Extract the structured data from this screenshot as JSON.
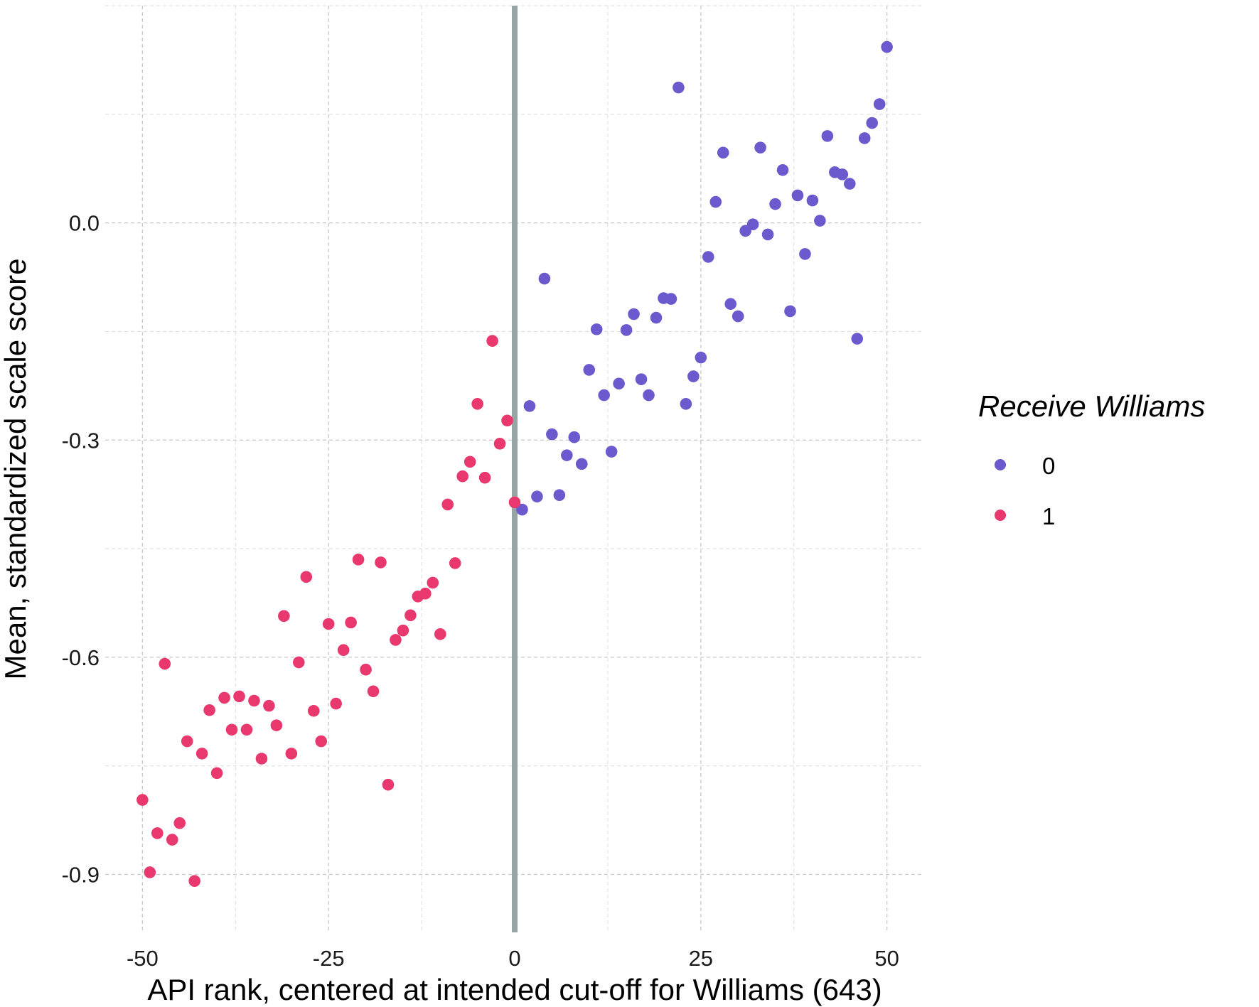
{
  "chart_data": {
    "type": "scatter",
    "title": "",
    "xlabel": "API rank, centered at intended cut-off for Williams (643)",
    "ylabel": "Mean, standardized scale score",
    "xlim": [
      -55,
      55
    ],
    "ylim": [
      -0.98,
      0.3
    ],
    "x_ticks": [
      -50,
      -25,
      0,
      25,
      50
    ],
    "x_tick_labels": [
      "-50",
      "-25",
      "0",
      "25",
      "50"
    ],
    "y_ticks": [
      -0.9,
      -0.6,
      -0.3,
      0.0
    ],
    "y_tick_labels": [
      "-0.9",
      "-0.6",
      "-0.3",
      "0.0"
    ],
    "grid": true,
    "cutoff_line_x": 0,
    "legend": {
      "title": "Receive Williams",
      "position": "right",
      "entries": [
        {
          "label": "0",
          "color": "#6a5acd"
        },
        {
          "label": "1",
          "color": "#e8386d"
        }
      ]
    },
    "series": [
      {
        "name": "0",
        "color": "#6a5acd",
        "points": [
          [
            1,
            -0.396
          ],
          [
            2,
            -0.253
          ],
          [
            3,
            -0.378
          ],
          [
            4,
            -0.077
          ],
          [
            5,
            -0.292
          ],
          [
            6,
            -0.376
          ],
          [
            7,
            -0.321
          ],
          [
            8,
            -0.296
          ],
          [
            9,
            -0.333
          ],
          [
            10,
            -0.203
          ],
          [
            11,
            -0.147
          ],
          [
            12,
            -0.238
          ],
          [
            13,
            -0.316
          ],
          [
            14,
            -0.222
          ],
          [
            15,
            -0.148
          ],
          [
            16,
            -0.126
          ],
          [
            17,
            -0.216
          ],
          [
            18,
            -0.238
          ],
          [
            19,
            -0.131
          ],
          [
            20,
            -0.104
          ],
          [
            21,
            -0.105
          ],
          [
            22,
            0.187
          ],
          [
            23,
            -0.25
          ],
          [
            24,
            -0.212
          ],
          [
            25,
            -0.186
          ],
          [
            26,
            -0.047
          ],
          [
            27,
            0.029
          ],
          [
            28,
            0.097
          ],
          [
            29,
            -0.112
          ],
          [
            30,
            -0.129
          ],
          [
            31,
            -0.011
          ],
          [
            32,
            -0.002
          ],
          [
            33,
            0.104
          ],
          [
            34,
            -0.016
          ],
          [
            35,
            0.026
          ],
          [
            36,
            0.073
          ],
          [
            37,
            -0.122
          ],
          [
            38,
            0.038
          ],
          [
            39,
            -0.043
          ],
          [
            40,
            0.031
          ],
          [
            41,
            0.003
          ],
          [
            42,
            0.12
          ],
          [
            43,
            0.07
          ],
          [
            44,
            0.067
          ],
          [
            45,
            0.054
          ],
          [
            46,
            -0.16
          ],
          [
            47,
            0.117
          ],
          [
            48,
            0.138
          ],
          [
            49,
            0.164
          ],
          [
            50,
            0.243
          ]
        ]
      },
      {
        "name": "1",
        "color": "#e8386d",
        "points": [
          [
            -50,
            -0.797
          ],
          [
            -49,
            -0.897
          ],
          [
            -48,
            -0.843
          ],
          [
            -47,
            -0.609
          ],
          [
            -46,
            -0.852
          ],
          [
            -45,
            -0.829
          ],
          [
            -44,
            -0.716
          ],
          [
            -43,
            -0.909
          ],
          [
            -42,
            -0.733
          ],
          [
            -41,
            -0.673
          ],
          [
            -40,
            -0.76
          ],
          [
            -39,
            -0.656
          ],
          [
            -38,
            -0.7
          ],
          [
            -37,
            -0.654
          ],
          [
            -36,
            -0.7
          ],
          [
            -35,
            -0.66
          ],
          [
            -34,
            -0.74
          ],
          [
            -33,
            -0.667
          ],
          [
            -32,
            -0.694
          ],
          [
            -31,
            -0.543
          ],
          [
            -30,
            -0.733
          ],
          [
            -29,
            -0.607
          ],
          [
            -28,
            -0.489
          ],
          [
            -27,
            -0.674
          ],
          [
            -26,
            -0.716
          ],
          [
            -25,
            -0.554
          ],
          [
            -24,
            -0.664
          ],
          [
            -23,
            -0.59
          ],
          [
            -22,
            -0.552
          ],
          [
            -21,
            -0.465
          ],
          [
            -20,
            -0.617
          ],
          [
            -19,
            -0.647
          ],
          [
            -18,
            -0.469
          ],
          [
            -17,
            -0.776
          ],
          [
            -16,
            -0.576
          ],
          [
            -15,
            -0.563
          ],
          [
            -14,
            -0.542
          ],
          [
            -13,
            -0.516
          ],
          [
            -12,
            -0.512
          ],
          [
            -11,
            -0.497
          ],
          [
            -10,
            -0.568
          ],
          [
            -9,
            -0.389
          ],
          [
            -8,
            -0.47
          ],
          [
            -7,
            -0.35
          ],
          [
            -6,
            -0.33
          ],
          [
            -5,
            -0.25
          ],
          [
            -4,
            -0.352
          ],
          [
            -3,
            -0.163
          ],
          [
            -2,
            -0.305
          ],
          [
            -1,
            -0.273
          ],
          [
            0,
            -0.386
          ]
        ]
      }
    ]
  }
}
